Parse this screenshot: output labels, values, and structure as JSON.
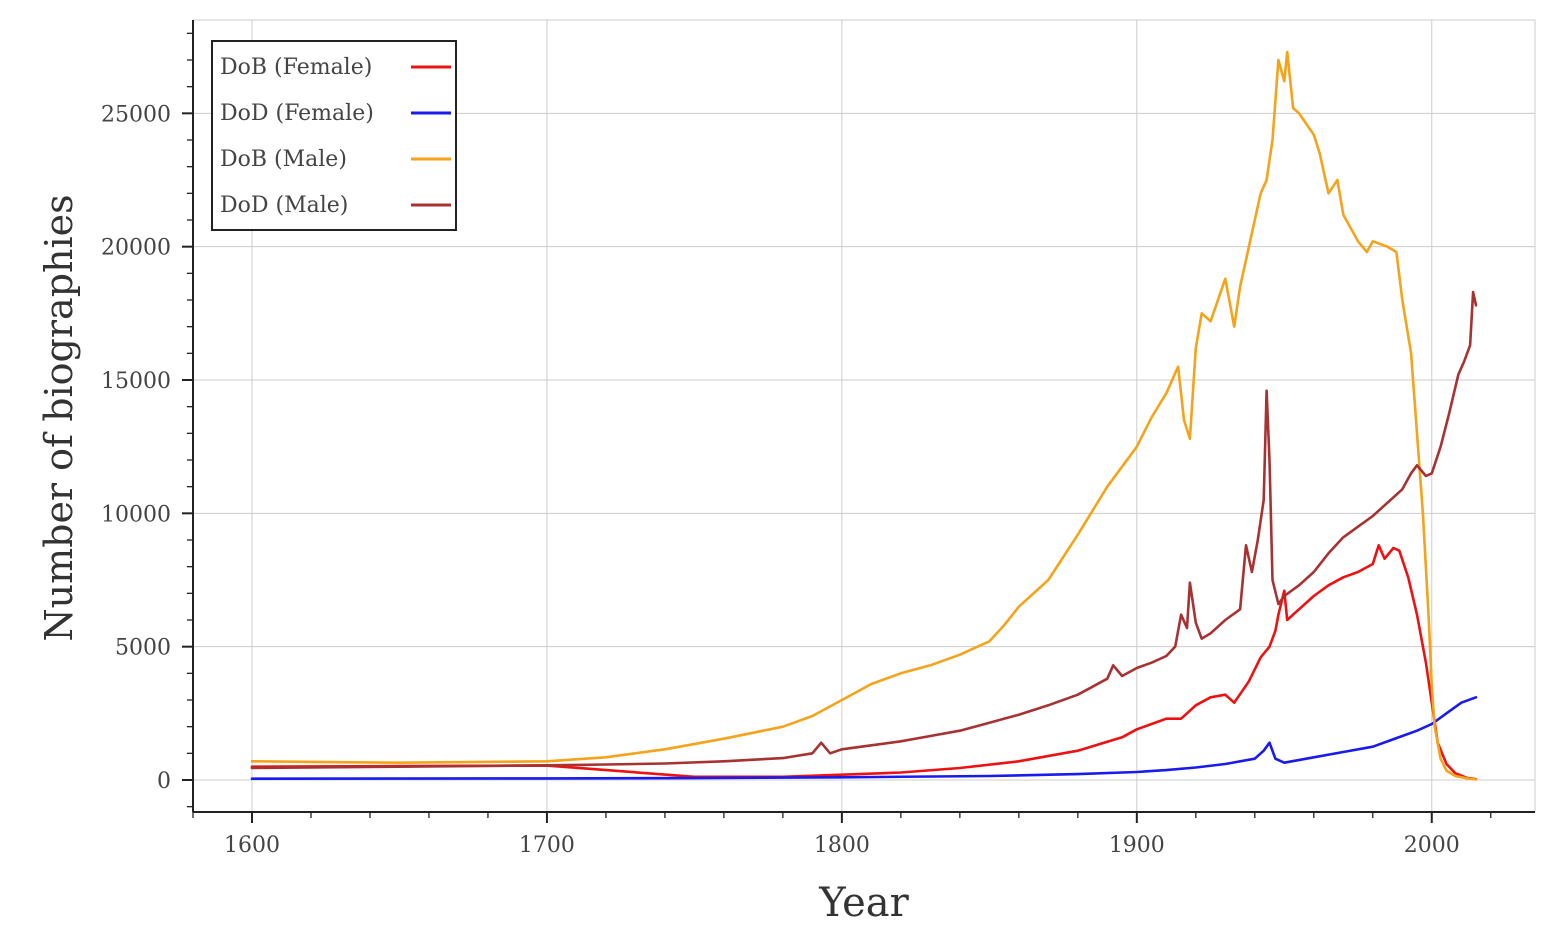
{
  "chart_data": {
    "type": "line",
    "title": "",
    "xlabel": "Year",
    "ylabel": "Number of biographies",
    "xlim": [
      1580,
      2035
    ],
    "ylim": [
      -1200,
      28500
    ],
    "x_ticks": [
      1600,
      1700,
      1800,
      1900,
      2000
    ],
    "x_tick_labels": [
      "1600",
      "1700",
      "1800",
      "1900",
      "2000"
    ],
    "y_ticks": [
      0,
      5000,
      10000,
      15000,
      20000,
      25000
    ],
    "y_tick_labels": [
      "0",
      "5000",
      "10000",
      "15000",
      "20000",
      "25000"
    ],
    "grid": true,
    "legend_position": "top-left",
    "series": [
      {
        "name": "DoB (Female)",
        "color": "#ee1111",
        "points": [
          [
            1600,
            500
          ],
          [
            1650,
            520
          ],
          [
            1700,
            540
          ],
          [
            1750,
            120
          ],
          [
            1780,
            120
          ],
          [
            1800,
            200
          ],
          [
            1820,
            280
          ],
          [
            1840,
            450
          ],
          [
            1860,
            700
          ],
          [
            1880,
            1100
          ],
          [
            1895,
            1600
          ],
          [
            1900,
            1900
          ],
          [
            1905,
            2100
          ],
          [
            1910,
            2300
          ],
          [
            1915,
            2300
          ],
          [
            1920,
            2800
          ],
          [
            1925,
            3100
          ],
          [
            1930,
            3200
          ],
          [
            1933,
            2900
          ],
          [
            1938,
            3700
          ],
          [
            1942,
            4600
          ],
          [
            1945,
            5000
          ],
          [
            1947,
            5600
          ],
          [
            1948,
            6200
          ],
          [
            1950,
            7100
          ],
          [
            1951,
            6000
          ],
          [
            1955,
            6400
          ],
          [
            1960,
            6900
          ],
          [
            1965,
            7300
          ],
          [
            1970,
            7600
          ],
          [
            1975,
            7800
          ],
          [
            1980,
            8100
          ],
          [
            1982,
            8800
          ],
          [
            1984,
            8300
          ],
          [
            1987,
            8700
          ],
          [
            1989,
            8600
          ],
          [
            1992,
            7600
          ],
          [
            1995,
            6200
          ],
          [
            1998,
            4400
          ],
          [
            2000,
            2900
          ],
          [
            2002,
            1400
          ],
          [
            2005,
            600
          ],
          [
            2008,
            250
          ],
          [
            2012,
            80
          ],
          [
            2015,
            30
          ]
        ]
      },
      {
        "name": "DoD (Female)",
        "color": "#1a1aee",
        "points": [
          [
            1600,
            50
          ],
          [
            1700,
            60
          ],
          [
            1750,
            70
          ],
          [
            1800,
            100
          ],
          [
            1850,
            150
          ],
          [
            1880,
            220
          ],
          [
            1900,
            300
          ],
          [
            1910,
            370
          ],
          [
            1920,
            470
          ],
          [
            1930,
            600
          ],
          [
            1940,
            800
          ],
          [
            1943,
            1100
          ],
          [
            1945,
            1400
          ],
          [
            1947,
            800
          ],
          [
            1950,
            650
          ],
          [
            1960,
            850
          ],
          [
            1970,
            1050
          ],
          [
            1980,
            1250
          ],
          [
            1990,
            1650
          ],
          [
            1995,
            1850
          ],
          [
            2000,
            2100
          ],
          [
            2005,
            2500
          ],
          [
            2010,
            2900
          ],
          [
            2015,
            3100
          ]
        ]
      },
      {
        "name": "DoB (Male)",
        "color": "#f5a31a",
        "points": [
          [
            1600,
            700
          ],
          [
            1650,
            650
          ],
          [
            1700,
            700
          ],
          [
            1720,
            850
          ],
          [
            1740,
            1150
          ],
          [
            1760,
            1550
          ],
          [
            1780,
            2000
          ],
          [
            1790,
            2400
          ],
          [
            1800,
            3000
          ],
          [
            1810,
            3600
          ],
          [
            1820,
            4000
          ],
          [
            1830,
            4300
          ],
          [
            1840,
            4700
          ],
          [
            1850,
            5200
          ],
          [
            1855,
            5800
          ],
          [
            1860,
            6500
          ],
          [
            1870,
            7500
          ],
          [
            1880,
            9200
          ],
          [
            1890,
            11000
          ],
          [
            1900,
            12500
          ],
          [
            1905,
            13600
          ],
          [
            1910,
            14500
          ],
          [
            1914,
            15500
          ],
          [
            1916,
            13500
          ],
          [
            1918,
            12800
          ],
          [
            1920,
            16200
          ],
          [
            1922,
            17500
          ],
          [
            1925,
            17200
          ],
          [
            1930,
            18800
          ],
          [
            1933,
            17000
          ],
          [
            1935,
            18500
          ],
          [
            1938,
            20000
          ],
          [
            1940,
            21000
          ],
          [
            1942,
            22000
          ],
          [
            1944,
            22500
          ],
          [
            1946,
            24000
          ],
          [
            1948,
            27000
          ],
          [
            1950,
            26200
          ],
          [
            1951,
            27300
          ],
          [
            1953,
            25200
          ],
          [
            1955,
            25000
          ],
          [
            1960,
            24200
          ],
          [
            1962,
            23500
          ],
          [
            1965,
            22000
          ],
          [
            1968,
            22500
          ],
          [
            1970,
            21200
          ],
          [
            1975,
            20200
          ],
          [
            1978,
            19800
          ],
          [
            1980,
            20200
          ],
          [
            1985,
            20000
          ],
          [
            1988,
            19800
          ],
          [
            1990,
            18000
          ],
          [
            1993,
            16000
          ],
          [
            1995,
            13000
          ],
          [
            1997,
            10000
          ],
          [
            1999,
            6000
          ],
          [
            2000,
            3500
          ],
          [
            2001,
            2000
          ],
          [
            2003,
            800
          ],
          [
            2005,
            350
          ],
          [
            2008,
            150
          ],
          [
            2012,
            60
          ],
          [
            2015,
            20
          ]
        ]
      },
      {
        "name": "DoD (Male)",
        "color": "#a83232",
        "points": [
          [
            1600,
            450
          ],
          [
            1650,
            500
          ],
          [
            1700,
            550
          ],
          [
            1720,
            580
          ],
          [
            1740,
            620
          ],
          [
            1760,
            700
          ],
          [
            1780,
            820
          ],
          [
            1790,
            1000
          ],
          [
            1793,
            1400
          ],
          [
            1796,
            1000
          ],
          [
            1800,
            1150
          ],
          [
            1810,
            1300
          ],
          [
            1820,
            1450
          ],
          [
            1830,
            1650
          ],
          [
            1840,
            1850
          ],
          [
            1850,
            2150
          ],
          [
            1860,
            2450
          ],
          [
            1870,
            2800
          ],
          [
            1880,
            3200
          ],
          [
            1890,
            3800
          ],
          [
            1892,
            4300
          ],
          [
            1895,
            3900
          ],
          [
            1900,
            4200
          ],
          [
            1905,
            4400
          ],
          [
            1910,
            4650
          ],
          [
            1913,
            5000
          ],
          [
            1915,
            6200
          ],
          [
            1917,
            5700
          ],
          [
            1918,
            7400
          ],
          [
            1920,
            5900
          ],
          [
            1922,
            5300
          ],
          [
            1925,
            5500
          ],
          [
            1930,
            6000
          ],
          [
            1935,
            6400
          ],
          [
            1937,
            8800
          ],
          [
            1939,
            7800
          ],
          [
            1941,
            9000
          ],
          [
            1943,
            10500
          ],
          [
            1944,
            14600
          ],
          [
            1945,
            12000
          ],
          [
            1946,
            7500
          ],
          [
            1948,
            6600
          ],
          [
            1950,
            6900
          ],
          [
            1955,
            7300
          ],
          [
            1960,
            7800
          ],
          [
            1965,
            8500
          ],
          [
            1970,
            9100
          ],
          [
            1975,
            9500
          ],
          [
            1980,
            9900
          ],
          [
            1985,
            10400
          ],
          [
            1990,
            10900
          ],
          [
            1993,
            11500
          ],
          [
            1995,
            11800
          ],
          [
            1998,
            11400
          ],
          [
            2000,
            11500
          ],
          [
            2003,
            12500
          ],
          [
            2006,
            13800
          ],
          [
            2009,
            15200
          ],
          [
            2011,
            15700
          ],
          [
            2013,
            16300
          ],
          [
            2014,
            18300
          ],
          [
            2015,
            17800
          ]
        ]
      }
    ]
  }
}
